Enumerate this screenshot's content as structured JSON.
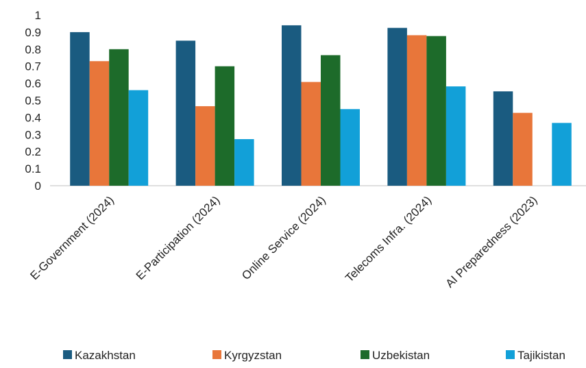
{
  "chart_data": {
    "type": "bar",
    "categories": [
      "E-Government (2024)",
      "E-Participation (2024)",
      "Online Service (2024)",
      "Telecoms Infra. (2024)",
      "AI Preparedness (2023)"
    ],
    "series": [
      {
        "name": "Kazakhstan",
        "color": "#1a5b80",
        "values": [
          0.9,
          0.85,
          0.94,
          0.925,
          0.553
        ]
      },
      {
        "name": "Kyrgyzstan",
        "color": "#e8763a",
        "values": [
          0.73,
          0.466,
          0.608,
          0.882,
          0.427
        ]
      },
      {
        "name": "Uzbekistan",
        "color": "#1d6b2a",
        "values": [
          0.8,
          0.7,
          0.765,
          0.877,
          null
        ]
      },
      {
        "name": "Tajikistan",
        "color": "#12a0d8",
        "values": [
          0.56,
          0.273,
          0.449,
          0.582,
          0.368
        ]
      }
    ],
    "yticks": [
      "0",
      "0.1",
      "0.2",
      "0.3",
      "0.4",
      "0.5",
      "0.6",
      "0.7",
      "0.8",
      "0.9",
      "1"
    ],
    "ylim": [
      0,
      1
    ],
    "grid": false,
    "legend": "bottom"
  }
}
